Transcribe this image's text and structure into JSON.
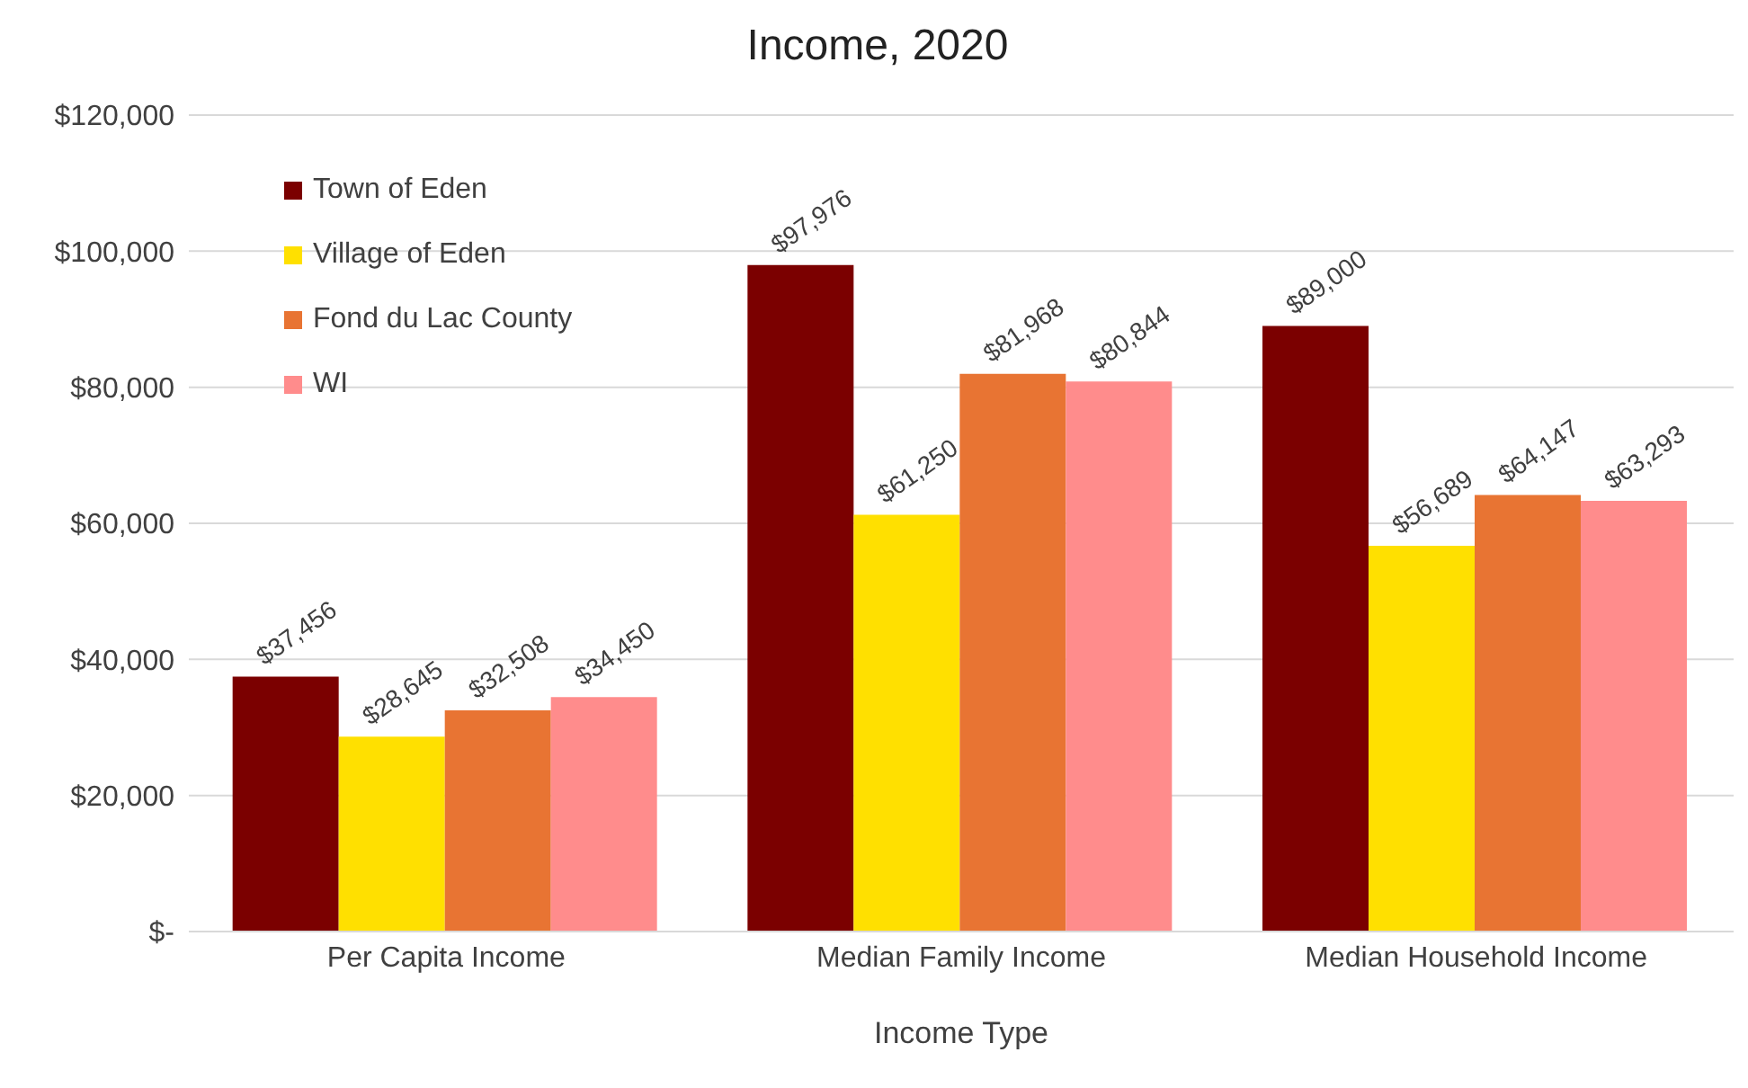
{
  "chart_data": {
    "type": "bar",
    "title": "Income, 2020",
    "xlabel": "Income Type",
    "categories": [
      "Per Capita Income",
      "Median Family Income",
      "Median Household Income"
    ],
    "series": [
      {
        "name": "Town of Eden",
        "color": "#7b0000",
        "values": [
          37456,
          97976,
          89000
        ],
        "value_labels": [
          "$37,456",
          "$97,976",
          "$89,000"
        ]
      },
      {
        "name": "Village of Eden",
        "color": "#ffe000",
        "values": [
          28645,
          61250,
          56689
        ],
        "value_labels": [
          "$28,645",
          "$61,250",
          "$56,689"
        ]
      },
      {
        "name": "Fond du Lac County",
        "color": "#e87433",
        "values": [
          32508,
          81968,
          64147
        ],
        "value_labels": [
          "$32,508",
          "$81,968",
          "$64,147"
        ]
      },
      {
        "name": "WI",
        "color": "#ff8c8c",
        "values": [
          34450,
          80844,
          63293
        ],
        "value_labels": [
          "$34,450",
          "$80,844",
          "$63,293"
        ]
      }
    ],
    "ylim": [
      0,
      120000
    ],
    "yticks": [
      {
        "value": 0,
        "label": "$-"
      },
      {
        "value": 20000,
        "label": "$20,000"
      },
      {
        "value": 40000,
        "label": "$40,000"
      },
      {
        "value": 60000,
        "label": "$60,000"
      },
      {
        "value": 80000,
        "label": "$80,000"
      },
      {
        "value": 100000,
        "label": "$100,000"
      },
      {
        "value": 120000,
        "label": "$120,000"
      }
    ],
    "grid": "y",
    "legend": "top left"
  }
}
